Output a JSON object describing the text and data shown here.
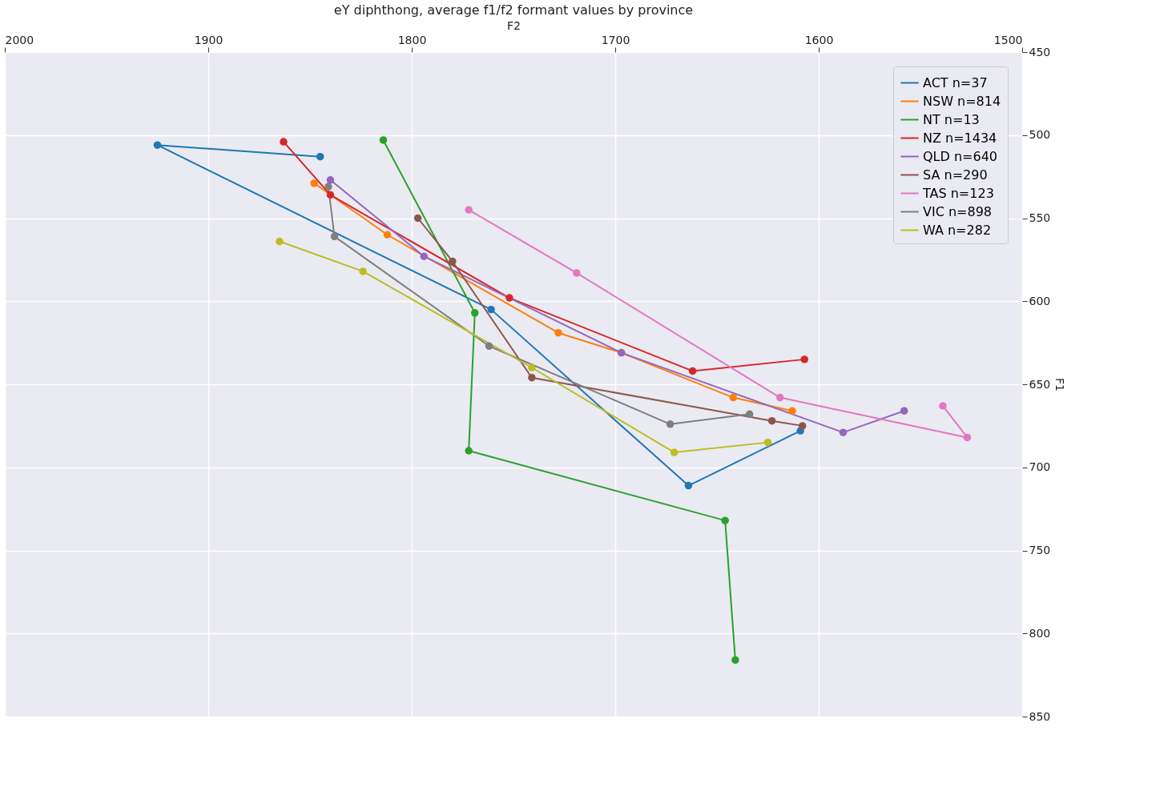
{
  "chart_data": {
    "type": "line",
    "title": "eY diphthong, average f1/f2 formant values by province",
    "xlabel": "F2",
    "ylabel": "F1",
    "xlim": [
      2000,
      1500
    ],
    "xticks": [
      2000,
      1900,
      1800,
      1700,
      1600,
      1500
    ],
    "ylim": [
      850,
      450
    ],
    "yticks": [
      450,
      500,
      550,
      600,
      650,
      700,
      750,
      800,
      850
    ],
    "grid": true,
    "legend": "top right",
    "marker": "circle",
    "line_style": "solid",
    "series": [
      {
        "name": "ACT n=37",
        "color": "#1f77b4",
        "x": [
          1845,
          1925,
          1761,
          1664,
          1609
        ],
        "values": [
          513,
          506,
          605,
          711,
          678
        ]
      },
      {
        "name": "NSW n=814",
        "color": "#ff7f0e",
        "x": [
          1848,
          1812,
          1728,
          1697,
          1642,
          1613
        ],
        "values": [
          529,
          560,
          619,
          631,
          658,
          666
        ]
      },
      {
        "name": "NT n=13",
        "color": "#2ca02c",
        "x": [
          1814,
          1769,
          1772,
          1646,
          1641
        ],
        "values": [
          503,
          607,
          690,
          732,
          816
        ]
      },
      {
        "name": "NZ n=1434",
        "color": "#d62728",
        "x": [
          1863,
          1840,
          1752,
          1662,
          1607
        ],
        "values": [
          504,
          536,
          598,
          642,
          635
        ]
      },
      {
        "name": "QLD n=640",
        "color": "#9467bd",
        "x": [
          1840,
          1794,
          1697,
          1588,
          1558
        ],
        "values": [
          527,
          573,
          631,
          679,
          666
        ]
      },
      {
        "name": "SA n=290",
        "color": "#8c564b",
        "x": [
          1797,
          1780,
          1741,
          1623,
          1608
        ],
        "values": [
          550,
          576,
          646,
          672,
          675
        ]
      },
      {
        "name": "TAS n=123",
        "color": "#e377c2",
        "x": [
          1772,
          1719,
          1619,
          1527,
          1539
        ],
        "values": [
          545,
          583,
          658,
          682,
          663
        ]
      },
      {
        "name": "VIC n=898",
        "color": "#7f7f7f",
        "x": [
          1841,
          1838,
          1762,
          1673,
          1634
        ],
        "values": [
          531,
          561,
          627,
          674,
          668
        ]
      },
      {
        "name": "WA n=282",
        "color": "#bcbd22",
        "x": [
          1865,
          1824,
          1741,
          1671,
          1625
        ],
        "values": [
          564,
          582,
          640,
          691,
          685
        ]
      }
    ]
  }
}
